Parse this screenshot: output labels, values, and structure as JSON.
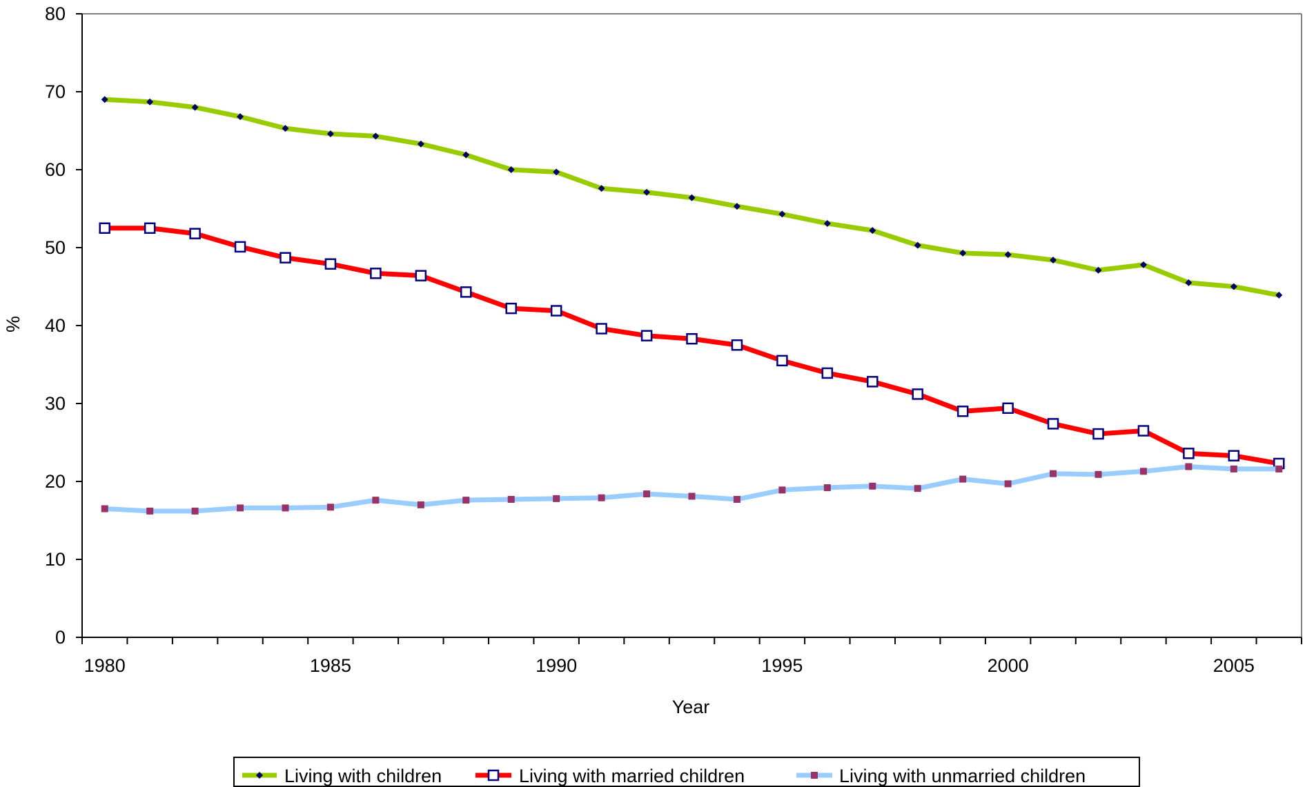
{
  "chart_data": {
    "type": "line",
    "title": "",
    "xlabel": "Year",
    "ylabel": "%",
    "x": [
      1980,
      1981,
      1982,
      1983,
      1984,
      1985,
      1986,
      1987,
      1988,
      1989,
      1990,
      1991,
      1992,
      1993,
      1994,
      1995,
      1996,
      1997,
      1998,
      1999,
      2000,
      2001,
      2002,
      2003,
      2004,
      2005,
      2006
    ],
    "x_tick_labels": [
      "1980",
      "1985",
      "1990",
      "1995",
      "2000",
      "2005"
    ],
    "y_tick_labels": [
      "0",
      "10",
      "20",
      "30",
      "40",
      "50",
      "60",
      "70",
      "80"
    ],
    "xlim": [
      1979.5,
      2006.5
    ],
    "ylim": [
      0,
      80
    ],
    "grid": false,
    "legend_position": "bottom",
    "series": [
      {
        "name": "Living with children",
        "color": "#99CC00",
        "marker_color": "#000066",
        "marker": "diamond",
        "values": [
          69.0,
          68.7,
          68.0,
          66.8,
          65.3,
          64.6,
          64.3,
          63.3,
          61.9,
          60.0,
          59.7,
          57.6,
          57.1,
          56.4,
          55.3,
          54.3,
          53.1,
          52.2,
          50.3,
          49.3,
          49.1,
          48.4,
          47.1,
          47.8,
          45.5,
          45.0,
          43.9
        ]
      },
      {
        "name": "Living with married children",
        "color": "#FF0000",
        "marker_color": "#000080",
        "marker": "square-open",
        "values": [
          52.5,
          52.5,
          51.8,
          50.1,
          48.7,
          47.9,
          46.7,
          46.4,
          44.3,
          42.2,
          41.9,
          39.6,
          38.7,
          38.3,
          37.5,
          35.5,
          33.9,
          32.8,
          31.2,
          29.0,
          29.4,
          27.4,
          26.1,
          26.5,
          23.6,
          23.3,
          22.3
        ]
      },
      {
        "name": "Living with unmarried children",
        "color": "#99CCFF",
        "marker_color": "#993366",
        "marker": "square",
        "values": [
          16.5,
          16.2,
          16.2,
          16.6,
          16.6,
          16.7,
          17.6,
          17.0,
          17.6,
          17.7,
          17.8,
          17.9,
          18.4,
          18.1,
          17.7,
          18.9,
          19.2,
          19.4,
          19.1,
          20.3,
          19.7,
          21.0,
          20.9,
          21.3,
          21.9,
          21.6,
          21.6
        ]
      }
    ]
  }
}
